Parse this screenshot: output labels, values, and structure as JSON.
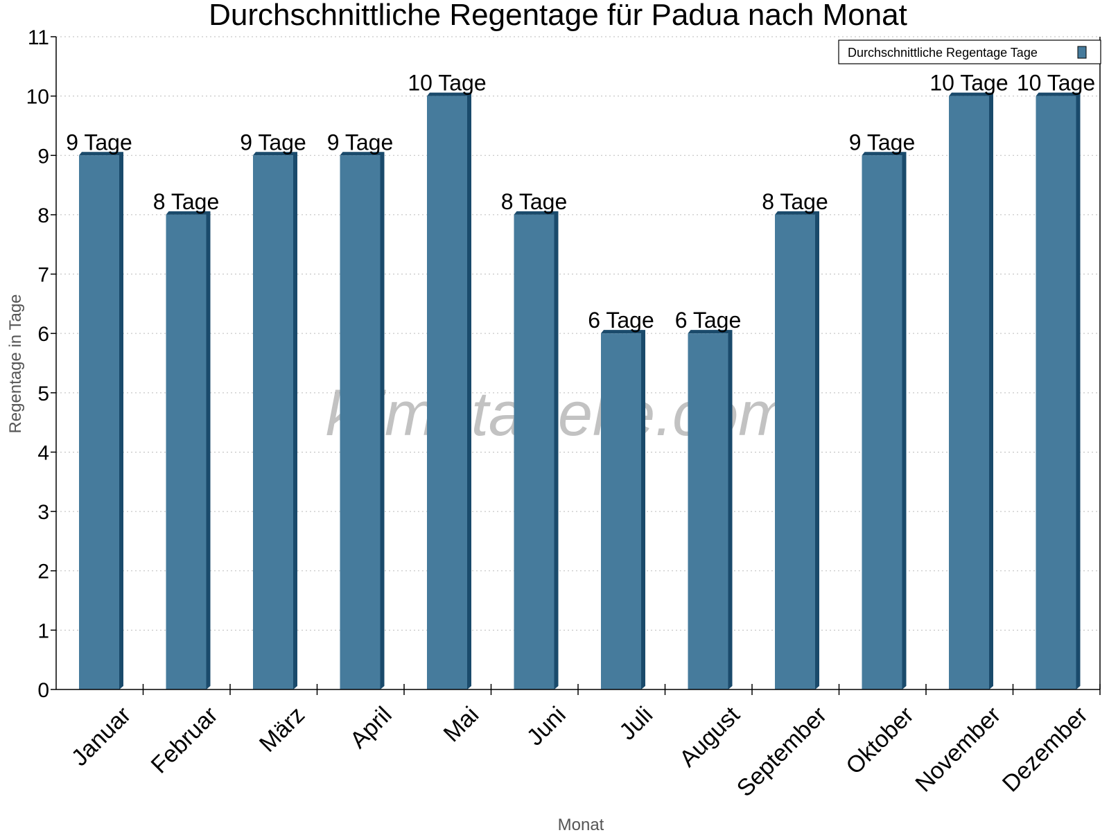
{
  "chart_data": {
    "type": "bar",
    "title": "Durchschnittliche Regentage für Padua nach Monat",
    "xlabel": "Monat",
    "ylabel": "Regentage in Tage",
    "categories": [
      "Januar",
      "Februar",
      "März",
      "April",
      "Mai",
      "Juni",
      "Juli",
      "August",
      "September",
      "Oktober",
      "November",
      "Dezember"
    ],
    "series": [
      {
        "name": "Durchschnittliche Regentage Tage",
        "values": [
          9,
          8,
          9,
          9,
          10,
          8,
          6,
          6,
          8,
          9,
          10,
          10
        ],
        "color": "#467b9c",
        "side_color": "#1a4a6b"
      }
    ],
    "data_labels": [
      "9 Tage",
      "8 Tage",
      "9 Tage",
      "9 Tage",
      "10 Tage",
      "8 Tage",
      "6 Tage",
      "6 Tage",
      "8 Tage",
      "9 Tage",
      "10 Tage",
      "10 Tage"
    ],
    "ylim": [
      0,
      11
    ],
    "yticks": [
      "0",
      "1",
      "2",
      "3",
      "4",
      "5",
      "6",
      "7",
      "8",
      "9",
      "10",
      "11"
    ],
    "grid": true,
    "legend_position": "top-right",
    "watermark": "klimatabelle.com"
  }
}
